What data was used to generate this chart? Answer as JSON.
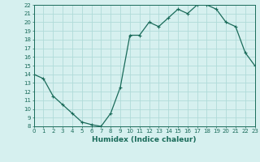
{
  "x": [
    0,
    1,
    2,
    3,
    4,
    5,
    6,
    7,
    8,
    9,
    10,
    11,
    12,
    13,
    14,
    15,
    16,
    17,
    18,
    19,
    20,
    21,
    22,
    23
  ],
  "y": [
    14,
    13.5,
    11.5,
    10.5,
    9.5,
    8.5,
    8.2,
    8.0,
    9.5,
    12.5,
    18.5,
    18.5,
    20.0,
    19.5,
    20.5,
    21.5,
    21.0,
    22.0,
    22.0,
    21.5,
    20.0,
    19.5,
    16.5,
    15.0
  ],
  "xlabel": "Humidex (Indice chaleur)",
  "line_color": "#1a6b5a",
  "bg_color": "#d6f0ef",
  "grid_color": "#b0dbd9",
  "marker": "+",
  "ylim": [
    8,
    22
  ],
  "xlim": [
    0,
    23
  ],
  "yticks": [
    8,
    9,
    10,
    11,
    12,
    13,
    14,
    15,
    16,
    17,
    18,
    19,
    20,
    21,
    22
  ],
  "xticks": [
    0,
    1,
    2,
    3,
    4,
    5,
    6,
    7,
    8,
    9,
    10,
    11,
    12,
    13,
    14,
    15,
    16,
    17,
    18,
    19,
    20,
    21,
    22,
    23
  ],
  "xlabel_fontsize": 6.5,
  "tick_fontsize": 5.0,
  "linewidth": 0.9,
  "markersize": 3.0
}
